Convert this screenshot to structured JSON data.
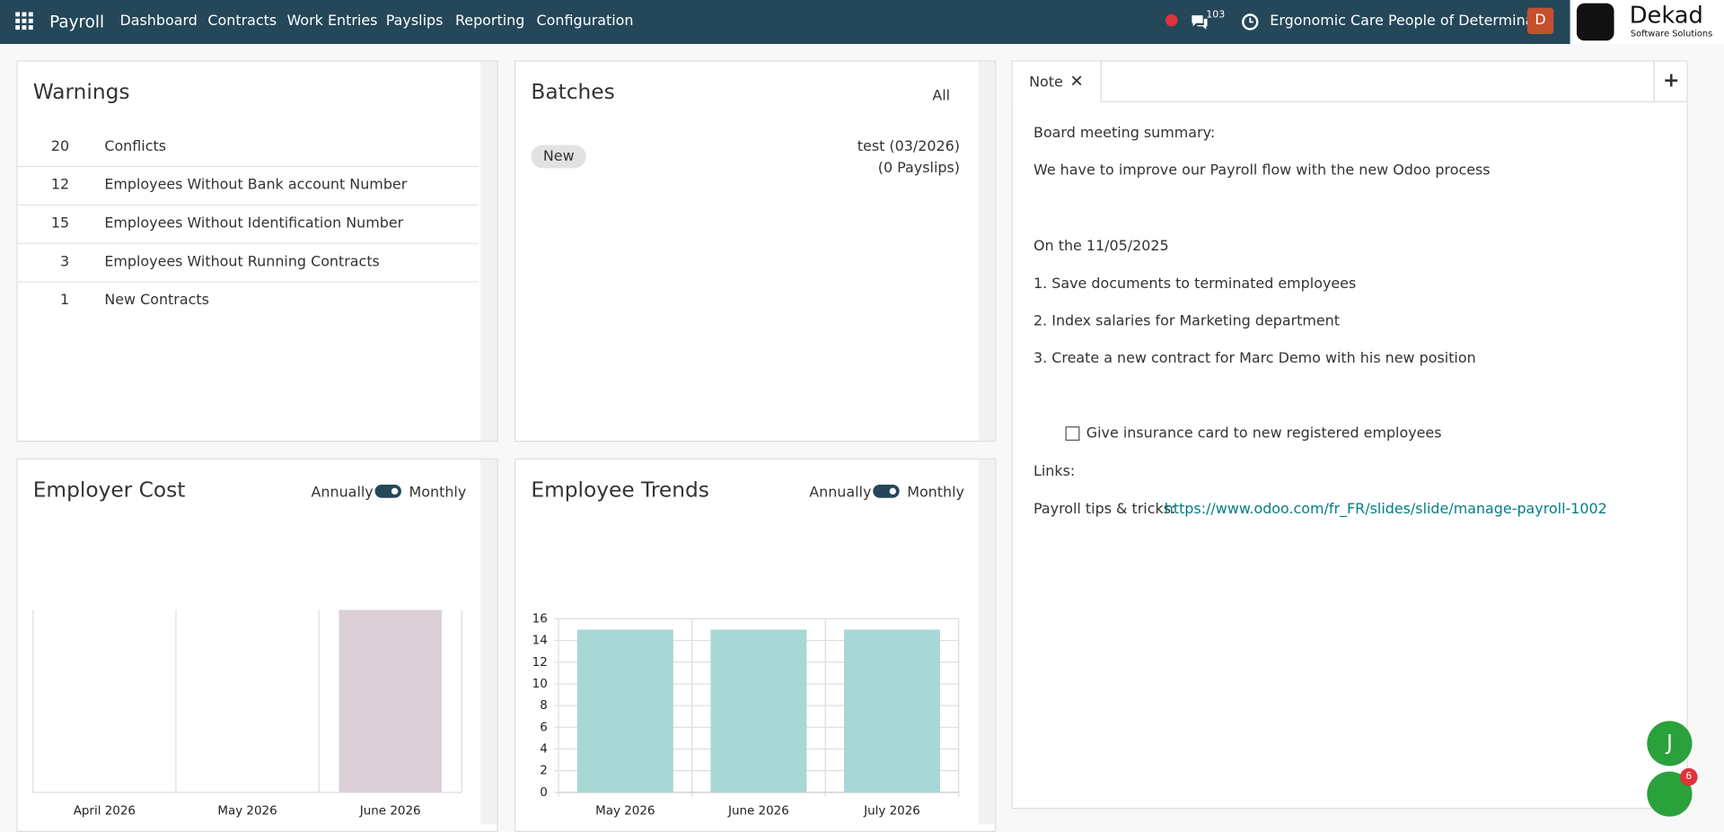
{
  "navbar": {
    "app": "Payroll",
    "menu": [
      "Dashboard",
      "Contracts",
      "Work Entries",
      "Payslips",
      "Reporting",
      "Configuration"
    ],
    "messages_count": "103",
    "company": "Ergonomic Care People of Determina...",
    "avatar": "D",
    "logo_title": "Dekad",
    "logo_subtitle": "Software Solutions"
  },
  "warnings": {
    "title": "Warnings",
    "rows": [
      [
        "20",
        "Conflicts"
      ],
      [
        "12",
        "Employees Without Bank account Number"
      ],
      [
        "15",
        "Employees Without Identification Number"
      ],
      [
        "3",
        "Employees Without Running Contracts"
      ],
      [
        "1",
        "New Contracts"
      ]
    ]
  },
  "batches": {
    "title": "Batches",
    "filter": "All",
    "items": [
      {
        "status": "New",
        "name": "test (03/2026)",
        "payslips": "(0 Payslips)"
      }
    ]
  },
  "employer_cost": {
    "title": "Employer Cost",
    "toggle_left": "Annually",
    "toggle_right": "Monthly",
    "chart_data": {
      "type": "bar",
      "categories": [
        "April 2026",
        "May 2026",
        "June 2026"
      ],
      "values": [
        0,
        0,
        1
      ],
      "ylim": [
        0,
        1
      ],
      "color": "#dcd0d8"
    }
  },
  "employee_trends": {
    "title": "Employee Trends",
    "toggle_left": "Annually",
    "toggle_right": "Monthly",
    "chart_data": {
      "type": "bar",
      "categories": [
        "May 2026",
        "June 2026",
        "July 2026"
      ],
      "values": [
        15,
        15,
        15
      ],
      "ylim": [
        0,
        16
      ],
      "yticks": [
        0,
        2,
        4,
        6,
        8,
        10,
        12,
        14,
        16
      ],
      "grid": true,
      "color": "#a8d8d5"
    }
  },
  "note": {
    "tab": "Note",
    "lines": [
      "Board meeting summary:",
      "We have to improve our Payroll flow with the new Odoo process",
      "On the 11/05/2025",
      "1. Save documents to terminated employees",
      "2. Index salaries for Marketing department",
      "3. Create a new contract for Marc Demo with his new position"
    ],
    "checkbox": "Give insurance card to new registered employees",
    "links_label": "Links:",
    "tips_label": "Payroll tips & tricks:",
    "tips_url": "https://www.odoo.com/fr_FR/slides/slide/manage-payroll-1002"
  },
  "chat": {
    "user": "J",
    "badge": "6"
  }
}
